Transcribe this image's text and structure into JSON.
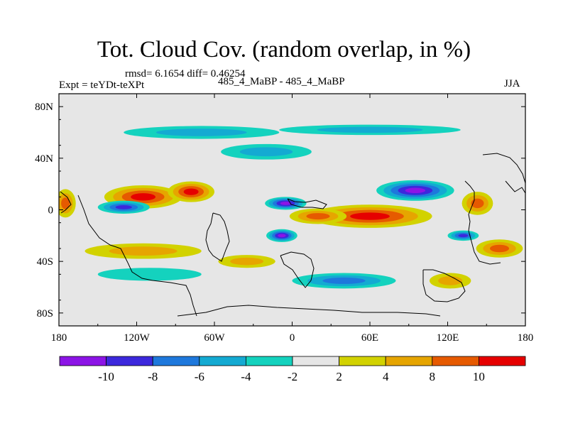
{
  "chart_data": {
    "type": "heatmap",
    "title": "Tot. Cloud Cov. (random overlap, in %)",
    "stats_line": "rmsd= 6.1654 diff= 0.46254",
    "experiment_label": "Expt = teYDt-teXPt",
    "runs_label": "485_4_MaBP - 485_4_MaBP",
    "season": "JJA",
    "projection": "cylindrical equidistant",
    "xlim": [
      -180,
      180
    ],
    "ylim": [
      -90,
      90
    ],
    "x_ticks": [
      {
        "value": -180,
        "label": "180"
      },
      {
        "value": -120,
        "label": "120W"
      },
      {
        "value": -60,
        "label": "60W"
      },
      {
        "value": 0,
        "label": "0"
      },
      {
        "value": 60,
        "label": "60E"
      },
      {
        "value": 120,
        "label": "120E"
      },
      {
        "value": 180,
        "label": "180"
      }
    ],
    "y_ticks": [
      {
        "value": 80,
        "label": "80N"
      },
      {
        "value": 40,
        "label": "40N"
      },
      {
        "value": 0,
        "label": "0"
      },
      {
        "value": -40,
        "label": "40S"
      },
      {
        "value": -80,
        "label": "80S"
      }
    ],
    "colorbar": {
      "levels": [
        -10,
        -8,
        -6,
        -4,
        -2,
        2,
        4,
        8,
        10
      ],
      "level_labels": [
        "-10",
        "-8",
        "-6",
        "-4",
        "-2",
        "2",
        "4",
        "8",
        "10"
      ],
      "colors": [
        "#8c14e6",
        "#3c28dc",
        "#1e78dc",
        "#14aad2",
        "#14d2be",
        "#e6e6e6",
        "#d2d200",
        "#e6a500",
        "#e65a00",
        "#e60000"
      ]
    },
    "field_features": [
      {
        "kind": "high",
        "name": "central-pacific-low-lat-positive",
        "lon": -115,
        "lat": 10,
        "value": 11,
        "rx": 30,
        "ry": 9
      },
      {
        "kind": "high",
        "name": "east-pacific-positive",
        "lon": -78,
        "lat": 14,
        "value": 10,
        "rx": 18,
        "ry": 8
      },
      {
        "kind": "high",
        "name": "indian-ocean-positive",
        "lon": 60,
        "lat": -5,
        "value": 13,
        "rx": 48,
        "ry": 9
      },
      {
        "kind": "high",
        "name": "atlantic-positive",
        "lon": 20,
        "lat": -5,
        "value": 8,
        "rx": 22,
        "ry": 6
      },
      {
        "kind": "high",
        "name": "west-pacific-positive",
        "lon": 143,
        "lat": 5,
        "value": 9,
        "rx": 12,
        "ry": 9
      },
      {
        "kind": "high",
        "name": "dateline-positive",
        "lon": -175,
        "lat": 5,
        "value": 9,
        "rx": 8,
        "ry": 11
      },
      {
        "kind": "high",
        "name": "southern-pacific-positive",
        "lon": -115,
        "lat": -32,
        "value": 7,
        "rx": 45,
        "ry": 6
      },
      {
        "kind": "high",
        "name": "australia-south-positive",
        "lon": 160,
        "lat": -30,
        "value": 9,
        "rx": 18,
        "ry": 7
      },
      {
        "kind": "high",
        "name": "south-indian-positive",
        "lon": 122,
        "lat": -55,
        "value": 6,
        "rx": 16,
        "ry": 6
      },
      {
        "kind": "high",
        "name": "south-atlantic-positive",
        "lon": -35,
        "lat": -40,
        "value": 5,
        "rx": 22,
        "ry": 5
      },
      {
        "kind": "low",
        "name": "asian-monsoon-negative",
        "lon": 95,
        "lat": 15,
        "value": -12,
        "rx": 30,
        "ry": 8
      },
      {
        "kind": "low",
        "name": "atlantic-negative",
        "lon": -5,
        "lat": 5,
        "value": -11,
        "rx": 16,
        "ry": 5
      },
      {
        "kind": "low",
        "name": "pacific-negative",
        "lon": -130,
        "lat": 2,
        "value": -9,
        "rx": 20,
        "ry": 5
      },
      {
        "kind": "low",
        "name": "south-atlantic-negative",
        "lon": -8,
        "lat": -20,
        "value": -11,
        "rx": 12,
        "ry": 5
      },
      {
        "kind": "low",
        "name": "south-indian-negative",
        "lon": 132,
        "lat": -20,
        "value": -8,
        "rx": 12,
        "ry": 4
      },
      {
        "kind": "low",
        "name": "north-pacific-band-negative",
        "lon": -70,
        "lat": 60,
        "value": -4,
        "rx": 60,
        "ry": 5
      },
      {
        "kind": "low",
        "name": "north-atlantic-band-negative",
        "lon": 60,
        "lat": 62,
        "value": -4,
        "rx": 70,
        "ry": 4
      },
      {
        "kind": "low",
        "name": "northern-midlat-negative",
        "lon": -20,
        "lat": 45,
        "value": -4,
        "rx": 35,
        "ry": 6
      },
      {
        "kind": "low",
        "name": "southern-ocean-negative",
        "lon": 40,
        "lat": -55,
        "value": -6,
        "rx": 40,
        "ry": 6
      },
      {
        "kind": "low",
        "name": "south-pacific-negative",
        "lon": -110,
        "lat": -50,
        "value": -3,
        "rx": 40,
        "ry": 5
      }
    ]
  }
}
